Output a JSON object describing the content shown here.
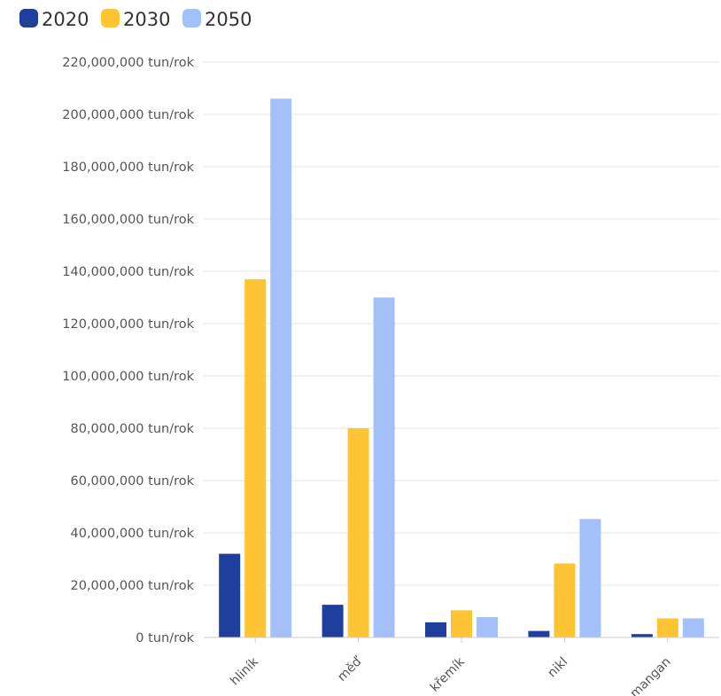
{
  "chart_data": {
    "type": "bar",
    "title": "",
    "xlabel": "",
    "ylabel": "",
    "categories": [
      "hliník",
      "měď",
      "křemík",
      "nikl",
      "mangan"
    ],
    "series": [
      {
        "name": "2020",
        "color": "#1f3f9c",
        "values": [
          32000000,
          12500000,
          5800000,
          2500000,
          1300000
        ]
      },
      {
        "name": "2030",
        "color": "#ffc433",
        "values": [
          137000000,
          80000000,
          10400000,
          28300000,
          7300000
        ]
      },
      {
        "name": "2050",
        "color": "#a4c0fb",
        "values": [
          206000000,
          130000000,
          7800000,
          45300000,
          7300000
        ]
      }
    ],
    "ylim": [
      0,
      220000000
    ],
    "y_ticks": [
      0,
      20000000,
      40000000,
      60000000,
      80000000,
      100000000,
      120000000,
      140000000,
      160000000,
      180000000,
      200000000,
      220000000
    ],
    "y_tick_labels": [
      "0 tun/rok",
      "20,000,000 tun/rok",
      "40,000,000 tun/rok",
      "60,000,000 tun/rok",
      "80,000,000 tun/rok",
      "100,000,000 tun/rok",
      "120,000,000 tun/rok",
      "140,000,000 tun/rok",
      "160,000,000 tun/rok",
      "180,000,000 tun/rok",
      "200,000,000 tun/rok",
      "220,000,000 tun/rok"
    ],
    "grid": true,
    "legend_position": "top-left"
  }
}
